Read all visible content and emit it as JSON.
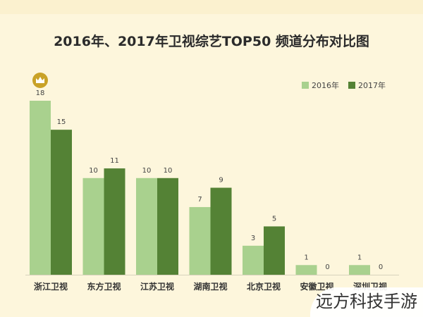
{
  "title": "2016年、2017年卫视综艺TOP50  频道分布对比图",
  "watermark": "远方科技手游",
  "colors": {
    "series_2016": "#a9d18e",
    "series_2017": "#548235",
    "background": "#fdf6dc",
    "crown": "#c9a227"
  },
  "crown_icon": "crown-icon",
  "chart_data": {
    "type": "bar",
    "title": "2016年、2017年卫视综艺TOP50  频道分布对比图",
    "categories": [
      "浙江卫视",
      "东方卫视",
      "江苏卫视",
      "湖南卫视",
      "北京卫视",
      "安徽卫视",
      "深圳卫视"
    ],
    "series": [
      {
        "name": "2016年",
        "values": [
          18,
          10,
          10,
          7,
          3,
          1,
          1
        ]
      },
      {
        "name": "2017年",
        "values": [
          15,
          11,
          10,
          9,
          5,
          0,
          0
        ]
      }
    ],
    "ylim": [
      0,
      18
    ],
    "grid": false,
    "legend": "top-right",
    "data_labels": true
  }
}
